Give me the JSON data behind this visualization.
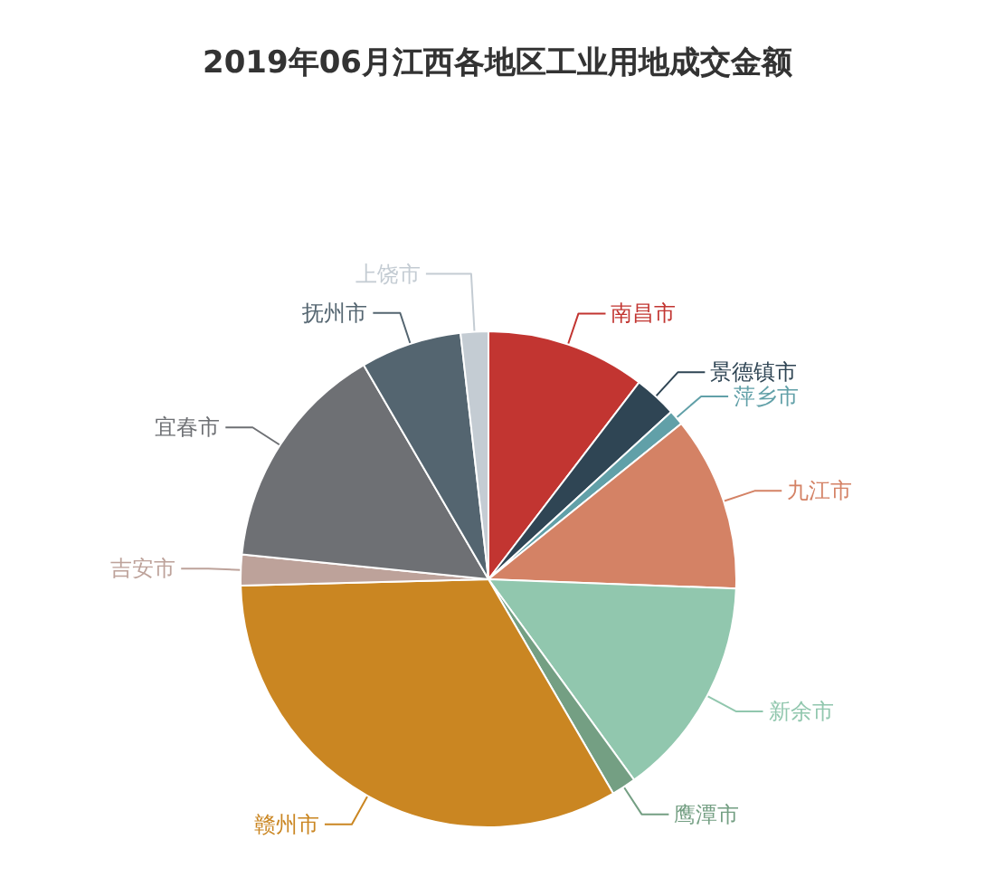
{
  "chart_data": {
    "type": "pie",
    "title": "2019年06月江西各地区工业用地成交金额",
    "categories": [
      "南昌市",
      "景德镇市",
      "萍乡市",
      "九江市",
      "新余市",
      "鹰潭市",
      "赣州市",
      "吉安市",
      "宜春市",
      "抚州市",
      "上饶市"
    ],
    "values": [
      10.4,
      2.8,
      1.0,
      11.4,
      14.4,
      1.6,
      33.0,
      2.0,
      15.0,
      6.6,
      1.8
    ],
    "colors": [
      "#c23531",
      "#2f4554",
      "#61a0a8",
      "#d48265",
      "#91c7ae",
      "#749f83",
      "#ca8622",
      "#bda29a",
      "#6e7074",
      "#546570",
      "#c4ccd3"
    ]
  }
}
